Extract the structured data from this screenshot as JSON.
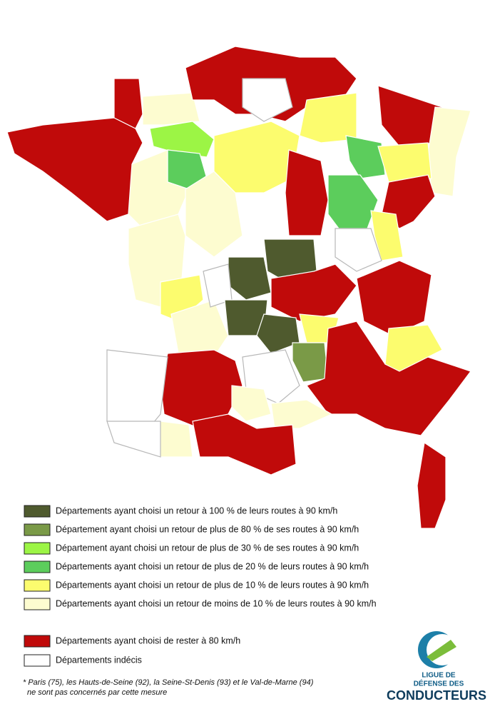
{
  "legend": {
    "items": [
      {
        "label": "Départements ayant choisi un retour à 100 % de leurs routes à 90 km/h",
        "color": "#4f5a2e"
      },
      {
        "label": "Département ayant choisi un retour de plus de 80 % de ses routes à 90 km/h",
        "color": "#7a9a47"
      },
      {
        "label": "Département ayant choisi un retour de plus de 30 % de ses routes à 90 km/h",
        "color": "#9cf545"
      },
      {
        "label": "Départements ayant choisi un retour de plus de 20 % de leurs routes à 90 km/h",
        "color": "#5ccd5c"
      },
      {
        "label": "Départements ayant choisi un retour de plus de 10 % de leurs routes à 90 km/h",
        "color": "#fcfc6e"
      },
      {
        "label": "Départements ayant choisi un retour de moins de 10 % de leurs routes à 90 km/h",
        "color": "#fdfcd0"
      },
      {
        "label": "Départements ayant choisi de rester à 80 km/h",
        "color": "#c00a0a"
      },
      {
        "label": "Départements indécis",
        "color": "#ffffff"
      }
    ]
  },
  "footnote": {
    "lines": [
      "* Paris (75), les Hauts-de-Seine (92), la Seine-St-Denis (93) et le Val-de-Marne (94)",
      "ne sont pas concernés par cette mesure"
    ]
  },
  "logo": {
    "lines": [
      "LIGUE DE",
      "DÉFENSE DES",
      "CONDUCTEURS"
    ]
  }
}
